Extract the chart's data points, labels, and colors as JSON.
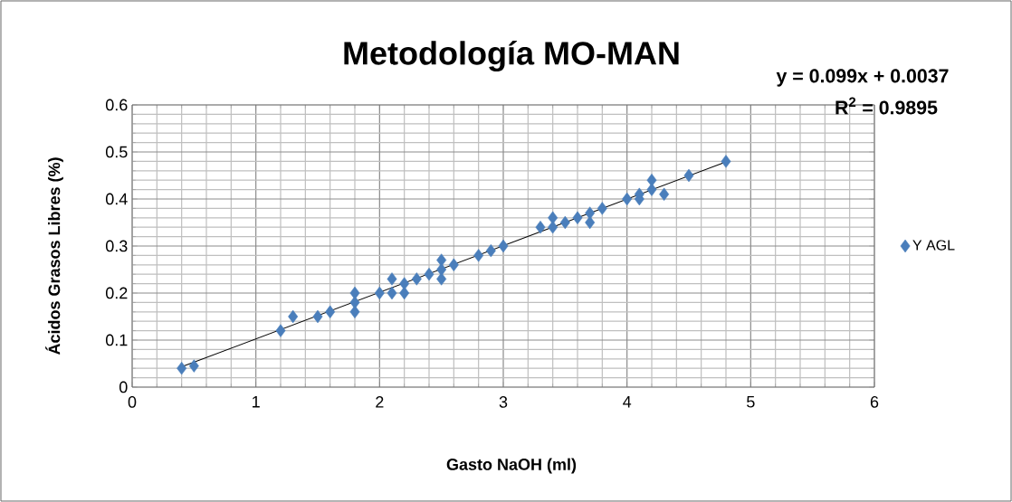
{
  "chart_data": {
    "type": "scatter",
    "title": "Metodología MO-MAN",
    "xlabel": "Gasto NaOH (ml)",
    "ylabel": "Ácidos Grasos Libres (%)",
    "annotations": [
      "y = 0.099x + 0.0037",
      "R$^{2}$ = 0.9895"
    ],
    "series": [
      {
        "name": "Y AGL",
        "color": "#4a7ebb",
        "marker": "diamond",
        "x": [
          0.4,
          0.5,
          1.2,
          1.3,
          1.5,
          1.6,
          1.8,
          1.8,
          1.8,
          2.0,
          2.1,
          2.1,
          2.2,
          2.2,
          2.3,
          2.4,
          2.5,
          2.5,
          2.5,
          2.6,
          2.8,
          2.9,
          3.0,
          3.3,
          3.4,
          3.4,
          3.5,
          3.6,
          3.7,
          3.7,
          3.8,
          4.0,
          4.1,
          4.1,
          4.2,
          4.2,
          4.3,
          4.5,
          4.8
        ],
        "values": [
          0.04,
          0.045,
          0.12,
          0.15,
          0.15,
          0.16,
          0.2,
          0.16,
          0.18,
          0.2,
          0.23,
          0.2,
          0.2,
          0.22,
          0.23,
          0.24,
          0.27,
          0.23,
          0.25,
          0.26,
          0.28,
          0.29,
          0.3,
          0.34,
          0.36,
          0.34,
          0.35,
          0.36,
          0.37,
          0.35,
          0.38,
          0.4,
          0.41,
          0.4,
          0.44,
          0.42,
          0.41,
          0.45,
          0.48
        ]
      },
      {
        "type": "line",
        "color": "#000000",
        "marker": "none",
        "x": [
          0.4,
          4.8
        ],
        "values": [
          0.043,
          0.479
        ]
      }
    ],
    "xlim": [
      0,
      6
    ],
    "xticks": [
      0,
      1,
      2,
      3,
      4,
      5,
      6
    ],
    "ylim": [
      0,
      0.6
    ],
    "yticks": [
      0,
      0.1,
      0.2,
      0.3,
      0.4,
      0.5,
      0.6
    ],
    "grid": true,
    "legend": "right"
  }
}
